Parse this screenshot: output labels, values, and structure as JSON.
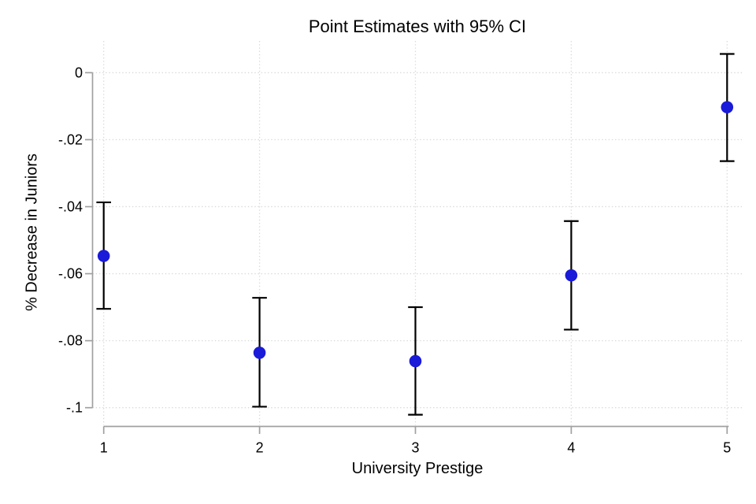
{
  "chart_data": {
    "type": "scatter",
    "subtype": "point-estimates-with-error-bars",
    "title": "Point Estimates with 95% CI",
    "xlabel": "University Prestige",
    "ylabel": "% Decrease in Juniors",
    "ci_level": "95%",
    "x_categories": [
      "1",
      "2",
      "3",
      "4",
      "5"
    ],
    "series": [
      {
        "name": "Point Estimate",
        "estimates": [
          -0.0547,
          -0.0836,
          -0.0861,
          -0.0605,
          -0.0103
        ],
        "ci_low": [
          -0.0705,
          -0.0997,
          -0.1021,
          -0.0767,
          -0.0264
        ],
        "ci_high": [
          -0.0387,
          -0.0672,
          -0.07,
          -0.0443,
          0.0056
        ]
      }
    ],
    "ytick_values": [
      0,
      -0.02,
      -0.04,
      -0.06,
      -0.08,
      -0.1
    ],
    "ytick_labels": [
      "0",
      "-.02",
      "-.04",
      "-.06",
      "-.08",
      "-.1"
    ],
    "ylim": [
      -0.105,
      0.0096
    ],
    "grid": true,
    "grid_style": "dotted",
    "legend": "none",
    "colors": {
      "point": "#1a1ad9",
      "error_bar": "#000000",
      "grid": "#d9d9d9",
      "axis": "#a0a0a0",
      "text": "#000000",
      "background": "#ffffff"
    }
  }
}
